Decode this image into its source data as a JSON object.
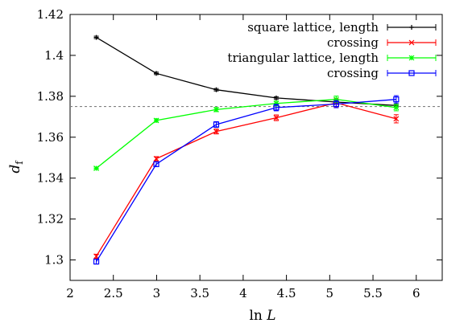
{
  "chart_data": {
    "type": "line",
    "xlabel": {
      "prefix": "ln ",
      "var": "L"
    },
    "ylabel": {
      "var": "d",
      "sub": "f"
    },
    "xlim": [
      2,
      6.3
    ],
    "ylim": [
      1.29,
      1.42
    ],
    "x_ticks": [
      2,
      2.5,
      3,
      3.5,
      4,
      4.5,
      5,
      5.5,
      6
    ],
    "x_tick_labels": [
      "2",
      "2.5",
      "3",
      "3.5",
      "4",
      "4.5",
      "5",
      "5.5",
      "6"
    ],
    "y_ticks": [
      1.3,
      1.32,
      1.34,
      1.36,
      1.38,
      1.4,
      1.42
    ],
    "y_tick_labels": [
      "1.3",
      "1.32",
      "1.34",
      "1.36",
      "1.38",
      "1.4",
      "1.42"
    ],
    "grid": false,
    "legend_position": "top-right",
    "reference_line": {
      "y": 1.375,
      "style": "dashed",
      "color": "#808080"
    },
    "series": [
      {
        "name": "square lattice, length",
        "color": "#000000",
        "marker": "plus",
        "x": [
          2.303,
          2.996,
          3.689,
          4.382,
          5.075,
          5.768
        ],
        "y": [
          1.4088,
          1.3912,
          1.3832,
          1.3792,
          1.3772,
          1.3755
        ],
        "err": [
          0.0006,
          0.0006,
          0.0006,
          0.0006,
          0.0006,
          0.0006
        ]
      },
      {
        "name": "crossing",
        "color": "#ff0000",
        "marker": "x",
        "x": [
          2.303,
          2.996,
          3.689,
          4.382,
          5.075,
          5.768
        ],
        "y": [
          1.3018,
          1.3495,
          1.3628,
          1.3695,
          1.3768,
          1.369
        ],
        "err": [
          0.001,
          0.001,
          0.0012,
          0.0014,
          0.002,
          0.002
        ]
      },
      {
        "name": "triangular lattice, length",
        "color": "#00ff00",
        "marker": "star",
        "x": [
          2.303,
          2.996,
          3.689,
          4.382,
          5.075,
          5.768
        ],
        "y": [
          1.3448,
          1.3682,
          1.3735,
          1.3765,
          1.3785,
          1.3745
        ],
        "err": [
          0.0006,
          0.0008,
          0.001,
          0.0012,
          0.0016,
          0.0016
        ]
      },
      {
        "name": "crossing",
        "color": "#0000ff",
        "marker": "square",
        "x": [
          2.303,
          2.996,
          3.689,
          4.382,
          5.075,
          5.768
        ],
        "y": [
          1.2992,
          1.3468,
          1.3662,
          1.3745,
          1.3762,
          1.3785
        ],
        "err": [
          0.0012,
          0.0012,
          0.0014,
          0.0016,
          0.0018,
          0.0018
        ]
      }
    ]
  }
}
